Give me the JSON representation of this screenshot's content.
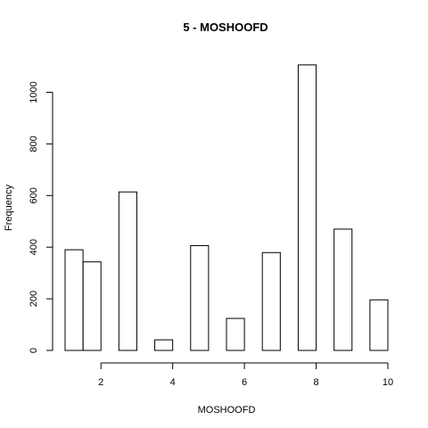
{
  "chart_data": {
    "type": "bar",
    "title": "5 - MOSHOOFD",
    "xlabel": "MOSHOOFD",
    "ylabel": "Frequency",
    "xlim": [
      1,
      10
    ],
    "ylim": [
      0,
      1100
    ],
    "x_ticks": [
      2,
      4,
      6,
      8,
      10
    ],
    "y_ticks": [
      0,
      200,
      400,
      600,
      800,
      1000
    ],
    "bins": [
      {
        "x0": 1.0,
        "x1": 1.5,
        "value": 390
      },
      {
        "x0": 1.5,
        "x1": 2.0,
        "value": 343
      },
      {
        "x0": 2.0,
        "x1": 2.5,
        "value": 0
      },
      {
        "x0": 2.5,
        "x1": 3.0,
        "value": 614
      },
      {
        "x0": 3.0,
        "x1": 3.5,
        "value": 0
      },
      {
        "x0": 3.5,
        "x1": 4.0,
        "value": 41
      },
      {
        "x0": 4.0,
        "x1": 4.5,
        "value": 0
      },
      {
        "x0": 4.5,
        "x1": 5.0,
        "value": 406
      },
      {
        "x0": 5.0,
        "x1": 5.5,
        "value": 0
      },
      {
        "x0": 5.5,
        "x1": 6.0,
        "value": 124
      },
      {
        "x0": 6.0,
        "x1": 6.5,
        "value": 0
      },
      {
        "x0": 6.5,
        "x1": 7.0,
        "value": 379
      },
      {
        "x0": 7.0,
        "x1": 7.5,
        "value": 0
      },
      {
        "x0": 7.5,
        "x1": 8.0,
        "value": 1106
      },
      {
        "x0": 8.0,
        "x1": 8.5,
        "value": 0
      },
      {
        "x0": 8.5,
        "x1": 9.0,
        "value": 470
      },
      {
        "x0": 9.0,
        "x1": 9.5,
        "value": 0
      },
      {
        "x0": 9.5,
        "x1": 10.0,
        "value": 196
      }
    ]
  }
}
